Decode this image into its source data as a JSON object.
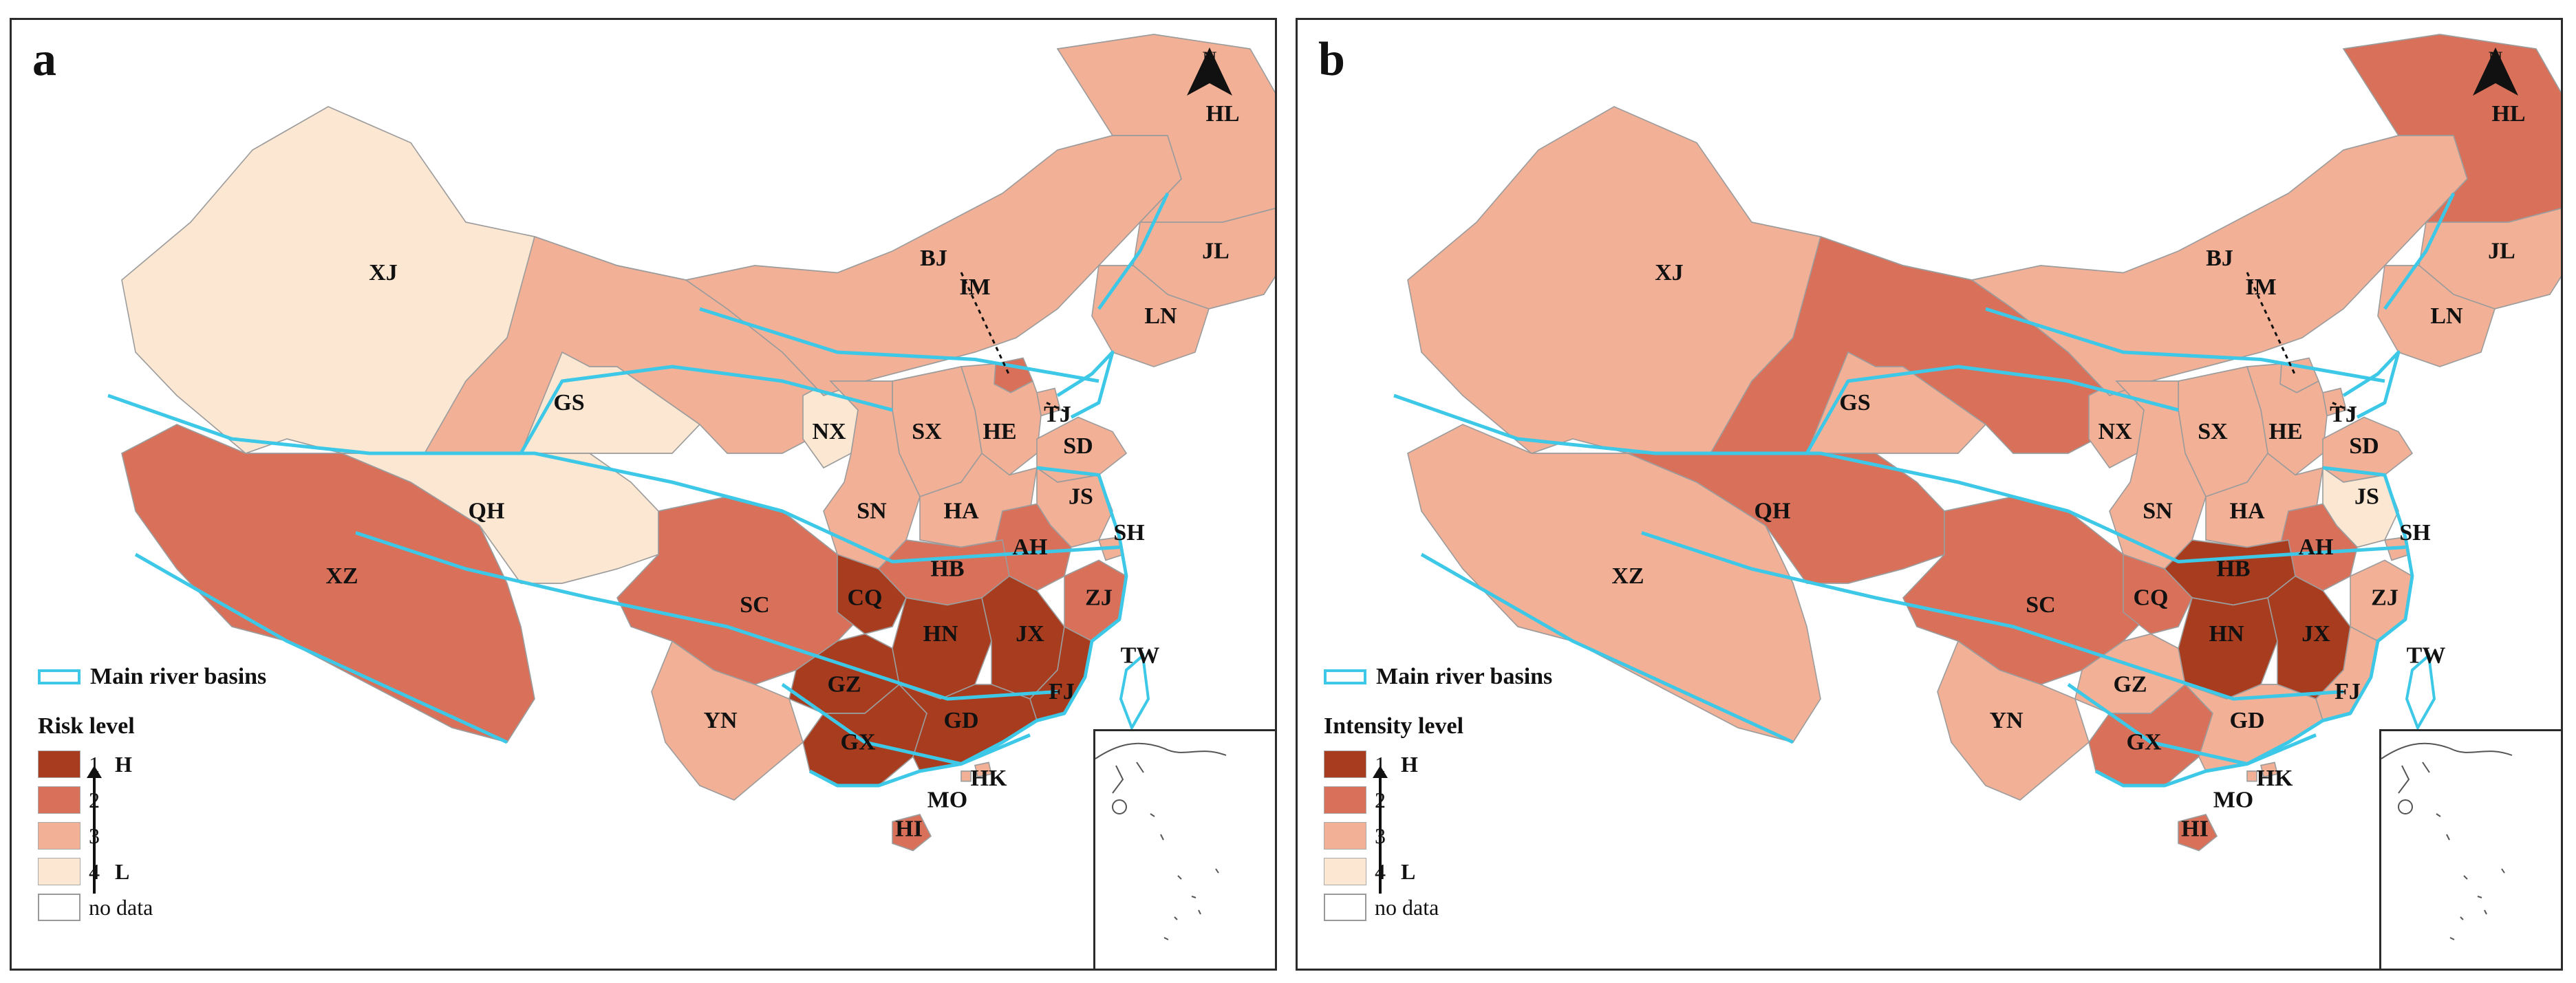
{
  "north_label": "N",
  "river_legend": "Main river basins",
  "no_data_label": "no data",
  "levels": [
    "1",
    "2",
    "3",
    "4"
  ],
  "high": "H",
  "low": "L",
  "level_colors": [
    "#a83c1f",
    "#d9705a",
    "#f2b096",
    "#fbe7d2"
  ],
  "river_color": "#3cc8e6",
  "panels": [
    {
      "letter": "a",
      "legend_title": "Risk level",
      "provinces": {
        "XJ": 4,
        "XZ": 2,
        "QH": 4,
        "GS": 3,
        "NX": 4,
        "IM": 3,
        "HL": 3,
        "JL": 3,
        "LN": 3,
        "BJ": 2,
        "TJ": 3,
        "HE": 3,
        "SX": 3,
        "SD": 3,
        "SN": 3,
        "HA": 3,
        "JS": 3,
        "AH": 2,
        "SH": 3,
        "ZJ": 2,
        "HB": 2,
        "SC": 2,
        "CQ": 1,
        "GZ": 1,
        "HN": 1,
        "JX": 1,
        "FJ": 1,
        "YN": 3,
        "GX": 1,
        "GD": 1,
        "HK": 3,
        "MO": 3,
        "HI": 2,
        "TW": 0
      }
    },
    {
      "letter": "b",
      "legend_title": "Intensity level",
      "provinces": {
        "XJ": 3,
        "XZ": 3,
        "QH": 2,
        "GS": 2,
        "NX": 3,
        "IM": 3,
        "HL": 2,
        "JL": 3,
        "LN": 3,
        "BJ": 3,
        "TJ": 3,
        "HE": 3,
        "SX": 3,
        "SD": 3,
        "SN": 3,
        "HA": 3,
        "JS": 4,
        "AH": 2,
        "SH": 3,
        "ZJ": 3,
        "HB": 1,
        "SC": 2,
        "CQ": 2,
        "GZ": 3,
        "HN": 1,
        "JX": 1,
        "FJ": 3,
        "YN": 3,
        "GX": 2,
        "GD": 3,
        "HK": 3,
        "MO": 3,
        "HI": 2,
        "TW": 0
      }
    }
  ]
}
